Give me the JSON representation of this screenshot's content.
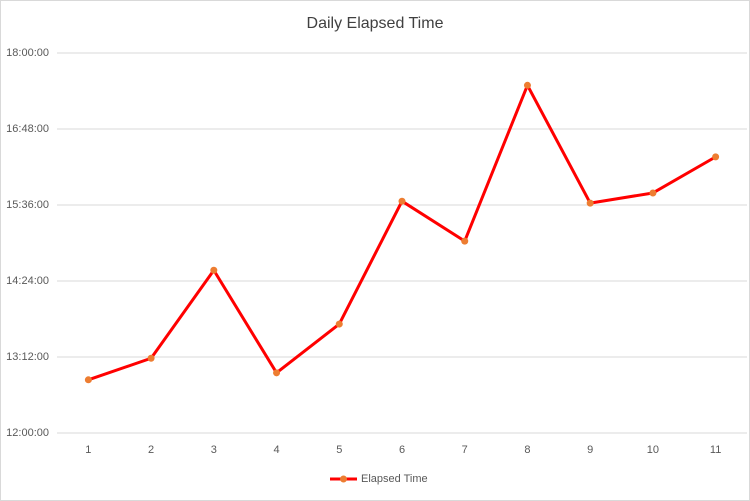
{
  "chart_data": {
    "type": "line",
    "title": "Daily Elapsed Time",
    "categories": [
      "1",
      "2",
      "3",
      "4",
      "5",
      "6",
      "7",
      "8",
      "9",
      "10",
      "11"
    ],
    "series": [
      {
        "name": "Elapsed Time",
        "color": "#ff0000",
        "marker_color": "#ed7d31",
        "values": [
          12.84,
          13.18,
          14.57,
          12.95,
          13.72,
          15.66,
          15.03,
          17.49,
          15.63,
          15.79,
          16.36
        ]
      }
    ],
    "ylim": [
      12,
      18
    ],
    "yticks": [
      {
        "value": 12,
        "label": "12:00:00"
      },
      {
        "value": 13.2,
        "label": "13:12:00"
      },
      {
        "value": 14.4,
        "label": "14:24:00"
      },
      {
        "value": 15.6,
        "label": "15:36:00"
      },
      {
        "value": 16.8,
        "label": "16:48:00"
      },
      {
        "value": 18,
        "label": "18:00:00"
      }
    ],
    "grid": true,
    "legend": "bottom"
  }
}
